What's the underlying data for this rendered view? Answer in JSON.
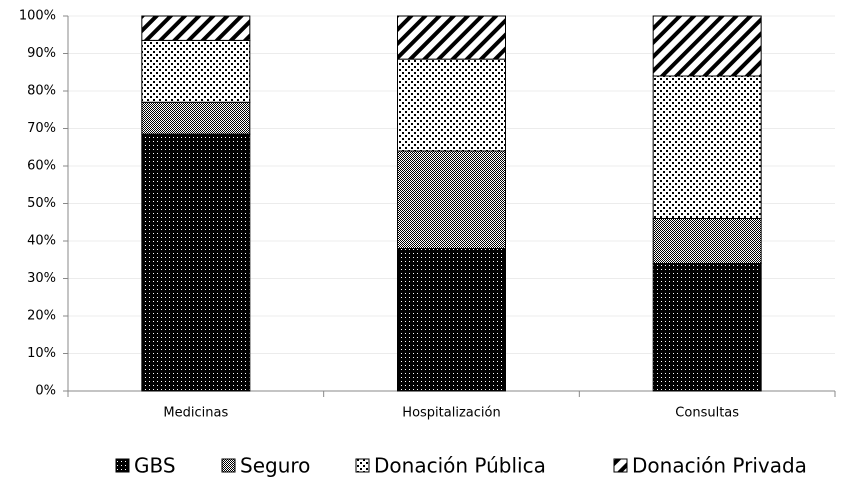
{
  "chart_data": {
    "type": "stacked_bar_100",
    "categories": [
      "Medicinas",
      "Hospitalización",
      "Consultas"
    ],
    "series": [
      {
        "name": "GBS",
        "values": [
          68.5,
          38,
          34
        ]
      },
      {
        "name": "Seguro",
        "values": [
          8.5,
          26,
          12
        ]
      },
      {
        "name": "Donación Pública",
        "values": [
          16.5,
          24.5,
          38
        ]
      },
      {
        "name": "Donación Privada",
        "values": [
          6.5,
          11.5,
          16
        ]
      }
    ],
    "ylim": [
      0,
      100
    ],
    "yticks": [
      {
        "value": 0,
        "label": "0%"
      },
      {
        "value": 10,
        "label": "10%"
      },
      {
        "value": 20,
        "label": "20%"
      },
      {
        "value": 30,
        "label": "30%"
      },
      {
        "value": 40,
        "label": "40%"
      },
      {
        "value": 50,
        "label": "50%"
      },
      {
        "value": 60,
        "label": "60%"
      },
      {
        "value": 70,
        "label": "70%"
      },
      {
        "value": 80,
        "label": "80%"
      },
      {
        "value": 90,
        "label": "90%"
      },
      {
        "value": 100,
        "label": "100%"
      }
    ],
    "grid": true,
    "legend": "bottom"
  }
}
